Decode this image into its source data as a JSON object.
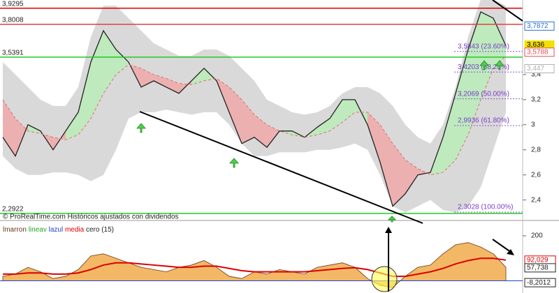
{
  "chart_data": [
    {
      "type": "line",
      "watermark": "© ProRealTime.com Históricos ajustados con dividendos",
      "ylim": [
        2.27,
        3.995
      ],
      "yticks": [
        {
          "value": 2.4,
          "label": "2,4"
        },
        {
          "value": 2.6,
          "label": "2,6"
        },
        {
          "value": 2.8,
          "label": "2,8"
        },
        3,
        {
          "value": 3.2,
          "label": "3,2"
        },
        {
          "value": 3.4,
          "label": "3,4"
        }
      ],
      "series": [
        {
          "name": "close",
          "color": "#222222",
          "values": [
            2.9,
            2.75,
            3.0,
            2.95,
            2.8,
            2.95,
            3.1,
            3.5,
            3.75,
            3.6,
            3.5,
            3.3,
            3.35,
            3.3,
            3.25,
            3.35,
            3.45,
            3.35,
            3.1,
            2.85,
            2.9,
            2.82,
            2.95,
            2.95,
            2.9,
            2.98,
            3.05,
            3.2,
            3.2,
            3.0,
            2.7,
            2.35,
            2.45,
            2.6,
            2.62,
            2.9,
            3.25,
            3.6,
            3.9,
            3.85,
            3.63
          ]
        },
        {
          "name": "media",
          "color": "#e07070",
          "values": [
            3.2,
            3.05,
            2.95,
            2.93,
            2.9,
            2.88,
            2.92,
            3.05,
            3.25,
            3.4,
            3.48,
            3.45,
            3.4,
            3.37,
            3.33,
            3.32,
            3.35,
            3.37,
            3.3,
            3.2,
            3.08,
            3.0,
            2.95,
            2.92,
            2.9,
            2.92,
            2.95,
            3.02,
            3.1,
            3.1,
            3.0,
            2.85,
            2.72,
            2.65,
            2.6,
            2.62,
            2.72,
            2.92,
            3.2,
            3.45,
            3.55
          ]
        }
      ],
      "band_upper": [
        3.5,
        3.4,
        3.3,
        3.2,
        3.15,
        3.15,
        3.3,
        3.7,
        3.95,
        3.95,
        3.85,
        3.75,
        3.65,
        3.6,
        3.55,
        3.55,
        3.6,
        3.6,
        3.55,
        3.45,
        3.35,
        3.2,
        3.15,
        3.1,
        3.08,
        3.1,
        3.15,
        3.25,
        3.3,
        3.3,
        3.25,
        3.15,
        3.0,
        2.9,
        2.85,
        3.0,
        3.3,
        3.7,
        4.0,
        4.0,
        3.95
      ],
      "band_lower": [
        2.75,
        2.65,
        2.6,
        2.6,
        2.62,
        2.62,
        2.6,
        2.55,
        2.6,
        2.8,
        3.05,
        3.1,
        3.1,
        3.12,
        3.1,
        3.08,
        3.1,
        3.1,
        3.0,
        2.85,
        2.75,
        2.75,
        2.78,
        2.78,
        2.78,
        2.8,
        2.8,
        2.82,
        2.85,
        2.8,
        2.6,
        2.35,
        2.3,
        2.35,
        2.4,
        2.32,
        2.3,
        2.35,
        2.5,
        2.8,
        3.1
      ],
      "levels": [
        {
          "value": 3.9295,
          "label": "3,9295",
          "color": "#e00000"
        },
        {
          "value": 3.8008,
          "label": "3,8008",
          "color": "#e04040"
        },
        {
          "value": 3.5391,
          "label": "3,5391",
          "color": "#22cc22"
        },
        {
          "value": 2.2922,
          "label": "2,2922",
          "color": "#22cc22"
        }
      ],
      "fibonacci": [
        {
          "value": 3.5843,
          "label": "3,5843 (23.60%)"
        },
        {
          "value": 3.4203,
          "label": "3,4203 (38.20%)"
        },
        {
          "value": 3.2069,
          "label": "3,2069 (50.00%)"
        },
        {
          "value": 2.9936,
          "label": "2,9936 (61.80%)"
        },
        {
          "value": 2.3028,
          "label": "2,3028 (100.00%)"
        }
      ],
      "price_tags": [
        {
          "value": 3.7872,
          "label": "3,7872",
          "color": "#2a6ecf"
        },
        {
          "value": 3.636,
          "label": "3,636",
          "color": "#f3e000"
        },
        {
          "value": 3.5788,
          "label": "3,5788",
          "color": "#e05050"
        },
        {
          "value": 3.447,
          "label": "3,447",
          "color": "#b0b0b0"
        }
      ]
    },
    {
      "type": "area",
      "legend": [
        {
          "text": "lmarron",
          "color": "#6b3a1a"
        },
        {
          "text": "lineav",
          "color": "#22aa22"
        },
        {
          "text": "lazul",
          "color": "#2244cc"
        },
        {
          "text": "media",
          "color": "#dd0000"
        },
        {
          "text": "cero (15)",
          "color": "#222222"
        }
      ],
      "ylim": [
        -48,
        262
      ],
      "yticks": [
        200
      ],
      "series": [
        {
          "name": "lmarron",
          "color": "#f2b866",
          "values": [
            20,
            30,
            60,
            40,
            10,
            20,
            50,
            110,
            120,
            100,
            80,
            60,
            50,
            40,
            60,
            70,
            90,
            60,
            20,
            10,
            40,
            30,
            50,
            40,
            30,
            60,
            70,
            80,
            60,
            10,
            -20,
            -30,
            20,
            60,
            70,
            120,
            160,
            170,
            150,
            120,
            60
          ]
        },
        {
          "name": "media",
          "color": "#dd0000",
          "values": [
            30,
            30,
            35,
            35,
            30,
            30,
            35,
            50,
            70,
            80,
            80,
            75,
            70,
            65,
            60,
            60,
            65,
            65,
            55,
            45,
            40,
            40,
            40,
            40,
            40,
            45,
            50,
            55,
            58,
            50,
            35,
            20,
            20,
            30,
            40,
            55,
            75,
            90,
            100,
            100,
            92
          ]
        }
      ],
      "value_tags": [
        {
          "value": 92.029,
          "label": "92,029",
          "color": "#dd0000"
        },
        {
          "value": 57.738,
          "label": "57,738",
          "color": "#222222"
        },
        {
          "value": -8.2012,
          "label": "-8,2012",
          "color": "#222222"
        }
      ]
    }
  ]
}
